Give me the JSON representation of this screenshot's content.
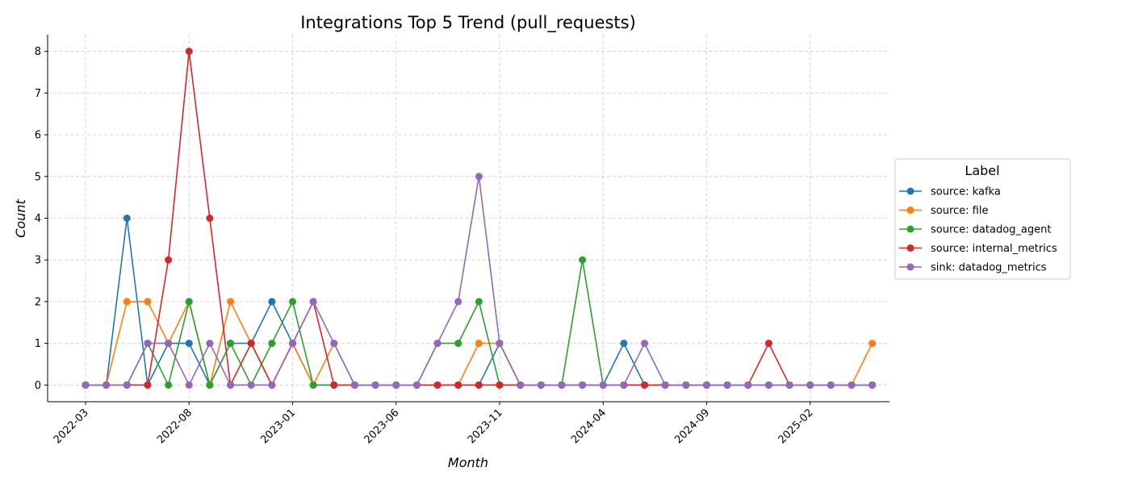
{
  "chart_data": {
    "type": "line",
    "title": "Integrations Top 5 Trend (pull_requests)",
    "xlabel": "Month",
    "ylabel": "Count",
    "x": [
      "2022-03",
      "2022-04",
      "2022-05",
      "2022-06",
      "2022-07",
      "2022-08",
      "2022-09",
      "2022-10",
      "2022-11",
      "2022-12",
      "2023-01",
      "2023-02",
      "2023-03",
      "2023-04",
      "2023-05",
      "2023-06",
      "2023-07",
      "2023-08",
      "2023-09",
      "2023-10",
      "2023-11",
      "2023-12",
      "2024-01",
      "2024-02",
      "2024-03",
      "2024-04",
      "2024-05",
      "2024-06",
      "2024-07",
      "2024-08",
      "2024-09",
      "2024-10",
      "2024-11",
      "2024-12",
      "2025-01",
      "2025-02",
      "2025-03",
      "2025-04",
      "2025-05"
    ],
    "x_ticks": [
      "2022-03",
      "2022-08",
      "2023-01",
      "2023-06",
      "2023-11",
      "2024-04",
      "2024-09",
      "2025-02"
    ],
    "y_ticks": [
      0,
      1,
      2,
      3,
      4,
      5,
      6,
      7,
      8
    ],
    "ylim": [
      -0.4,
      8.4
    ],
    "grid": true,
    "legend": {
      "title": "Label",
      "placement": "center-right"
    },
    "series": [
      {
        "name": "source: kafka",
        "color": "#1f77b4",
        "values": [
          0,
          0,
          4,
          0,
          1,
          1,
          0,
          1,
          1,
          2,
          1,
          0,
          0,
          0,
          0,
          0,
          0,
          0,
          0,
          0,
          1,
          0,
          0,
          0,
          0,
          0,
          1,
          0,
          0,
          0,
          0,
          0,
          0,
          0,
          0,
          0,
          0,
          0,
          0
        ]
      },
      {
        "name": "source: file",
        "color": "#ff7f0e",
        "values": [
          0,
          0,
          2,
          2,
          1,
          2,
          0,
          2,
          1,
          0,
          1,
          0,
          1,
          0,
          0,
          0,
          0,
          0,
          0,
          1,
          1,
          0,
          0,
          0,
          0,
          0,
          0,
          0,
          0,
          0,
          0,
          0,
          0,
          0,
          0,
          0,
          0,
          0,
          1
        ]
      },
      {
        "name": "source: datadog_agent",
        "color": "#2ca02c",
        "values": [
          0,
          0,
          0,
          1,
          0,
          2,
          0,
          1,
          0,
          1,
          2,
          0,
          0,
          0,
          0,
          0,
          0,
          1,
          1,
          2,
          0,
          0,
          0,
          0,
          3,
          0,
          0,
          0,
          0,
          0,
          0,
          0,
          0,
          0,
          0,
          0,
          0,
          0,
          0
        ]
      },
      {
        "name": "source: internal_metrics",
        "color": "#d62728",
        "values": [
          0,
          0,
          0,
          0,
          3,
          8,
          4,
          0,
          1,
          0,
          1,
          2,
          0,
          0,
          0,
          0,
          0,
          0,
          0,
          0,
          0,
          0,
          0,
          0,
          0,
          0,
          0,
          0,
          0,
          0,
          0,
          0,
          0,
          1,
          0,
          0,
          0,
          0,
          0
        ]
      },
      {
        "name": "sink: datadog_metrics",
        "color": "#9467bd",
        "values": [
          0,
          0,
          0,
          1,
          1,
          0,
          1,
          0,
          0,
          0,
          1,
          2,
          1,
          0,
          0,
          0,
          0,
          1,
          2,
          5,
          1,
          0,
          0,
          0,
          0,
          0,
          0,
          1,
          0,
          0,
          0,
          0,
          0,
          0,
          0,
          0,
          0,
          0,
          0
        ]
      }
    ]
  }
}
